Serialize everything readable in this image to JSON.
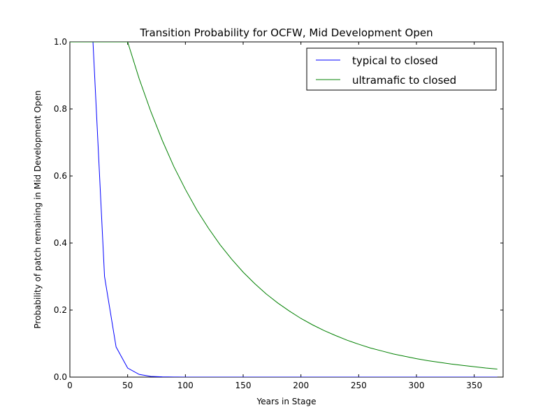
{
  "chart_data": {
    "type": "line",
    "title": "Transition Probability for OCFW, Mid Development Open",
    "xlabel": "Years in Stage",
    "ylabel": "Probability of patch remaining in Mid Development Open",
    "xlim": [
      0,
      375
    ],
    "ylim": [
      0,
      1.0
    ],
    "xticks": [
      0,
      50,
      100,
      150,
      200,
      250,
      300,
      350
    ],
    "xtick_labels": [
      "0",
      "50",
      "100",
      "150",
      "200",
      "250",
      "300",
      "350"
    ],
    "yticks": [
      0,
      0.2,
      0.4,
      0.6,
      0.8,
      1.0
    ],
    "ytick_labels": [
      "0.0",
      "0.2",
      "0.4",
      "0.6",
      "0.8",
      "1.0"
    ],
    "grid": false,
    "legend_position": "top-right",
    "series": [
      {
        "name": "typical to closed",
        "color": "#0000ff",
        "x": [
          0,
          10,
          20,
          30,
          40,
          50,
          60,
          70,
          80,
          90,
          100,
          110,
          120,
          130,
          140,
          150,
          160,
          170,
          180,
          190,
          200,
          210,
          220,
          230,
          240,
          250,
          260,
          270,
          280,
          290,
          300,
          310,
          320,
          330,
          340,
          350,
          360,
          370
        ],
        "y": [
          1.0,
          1.0,
          1.0,
          0.3,
          0.09,
          0.027,
          0.008,
          0.002,
          0.0007,
          0.0002,
          0.0001,
          0,
          0,
          0,
          0,
          0,
          0,
          0,
          0,
          0,
          0,
          0,
          0,
          0,
          0,
          0,
          0,
          0,
          0,
          0,
          0,
          0,
          0,
          0,
          0,
          0,
          0,
          0
        ]
      },
      {
        "name": "ultramafic to closed",
        "color": "#008000",
        "x": [
          0,
          10,
          20,
          30,
          40,
          50,
          60,
          70,
          80,
          90,
          100,
          110,
          120,
          130,
          140,
          150,
          160,
          170,
          180,
          190,
          200,
          210,
          220,
          230,
          240,
          250,
          260,
          270,
          280,
          290,
          300,
          310,
          320,
          330,
          340,
          350,
          360,
          370
        ],
        "y": [
          1.0,
          1.0,
          1.0,
          1.0,
          1.0,
          1.0,
          0.89,
          0.793,
          0.706,
          0.628,
          0.56,
          0.498,
          0.444,
          0.395,
          0.352,
          0.313,
          0.279,
          0.248,
          0.221,
          0.197,
          0.175,
          0.156,
          0.139,
          0.124,
          0.11,
          0.098,
          0.087,
          0.078,
          0.069,
          0.062,
          0.055,
          0.049,
          0.044,
          0.039,
          0.035,
          0.031,
          0.027,
          0.024
        ]
      }
    ]
  }
}
